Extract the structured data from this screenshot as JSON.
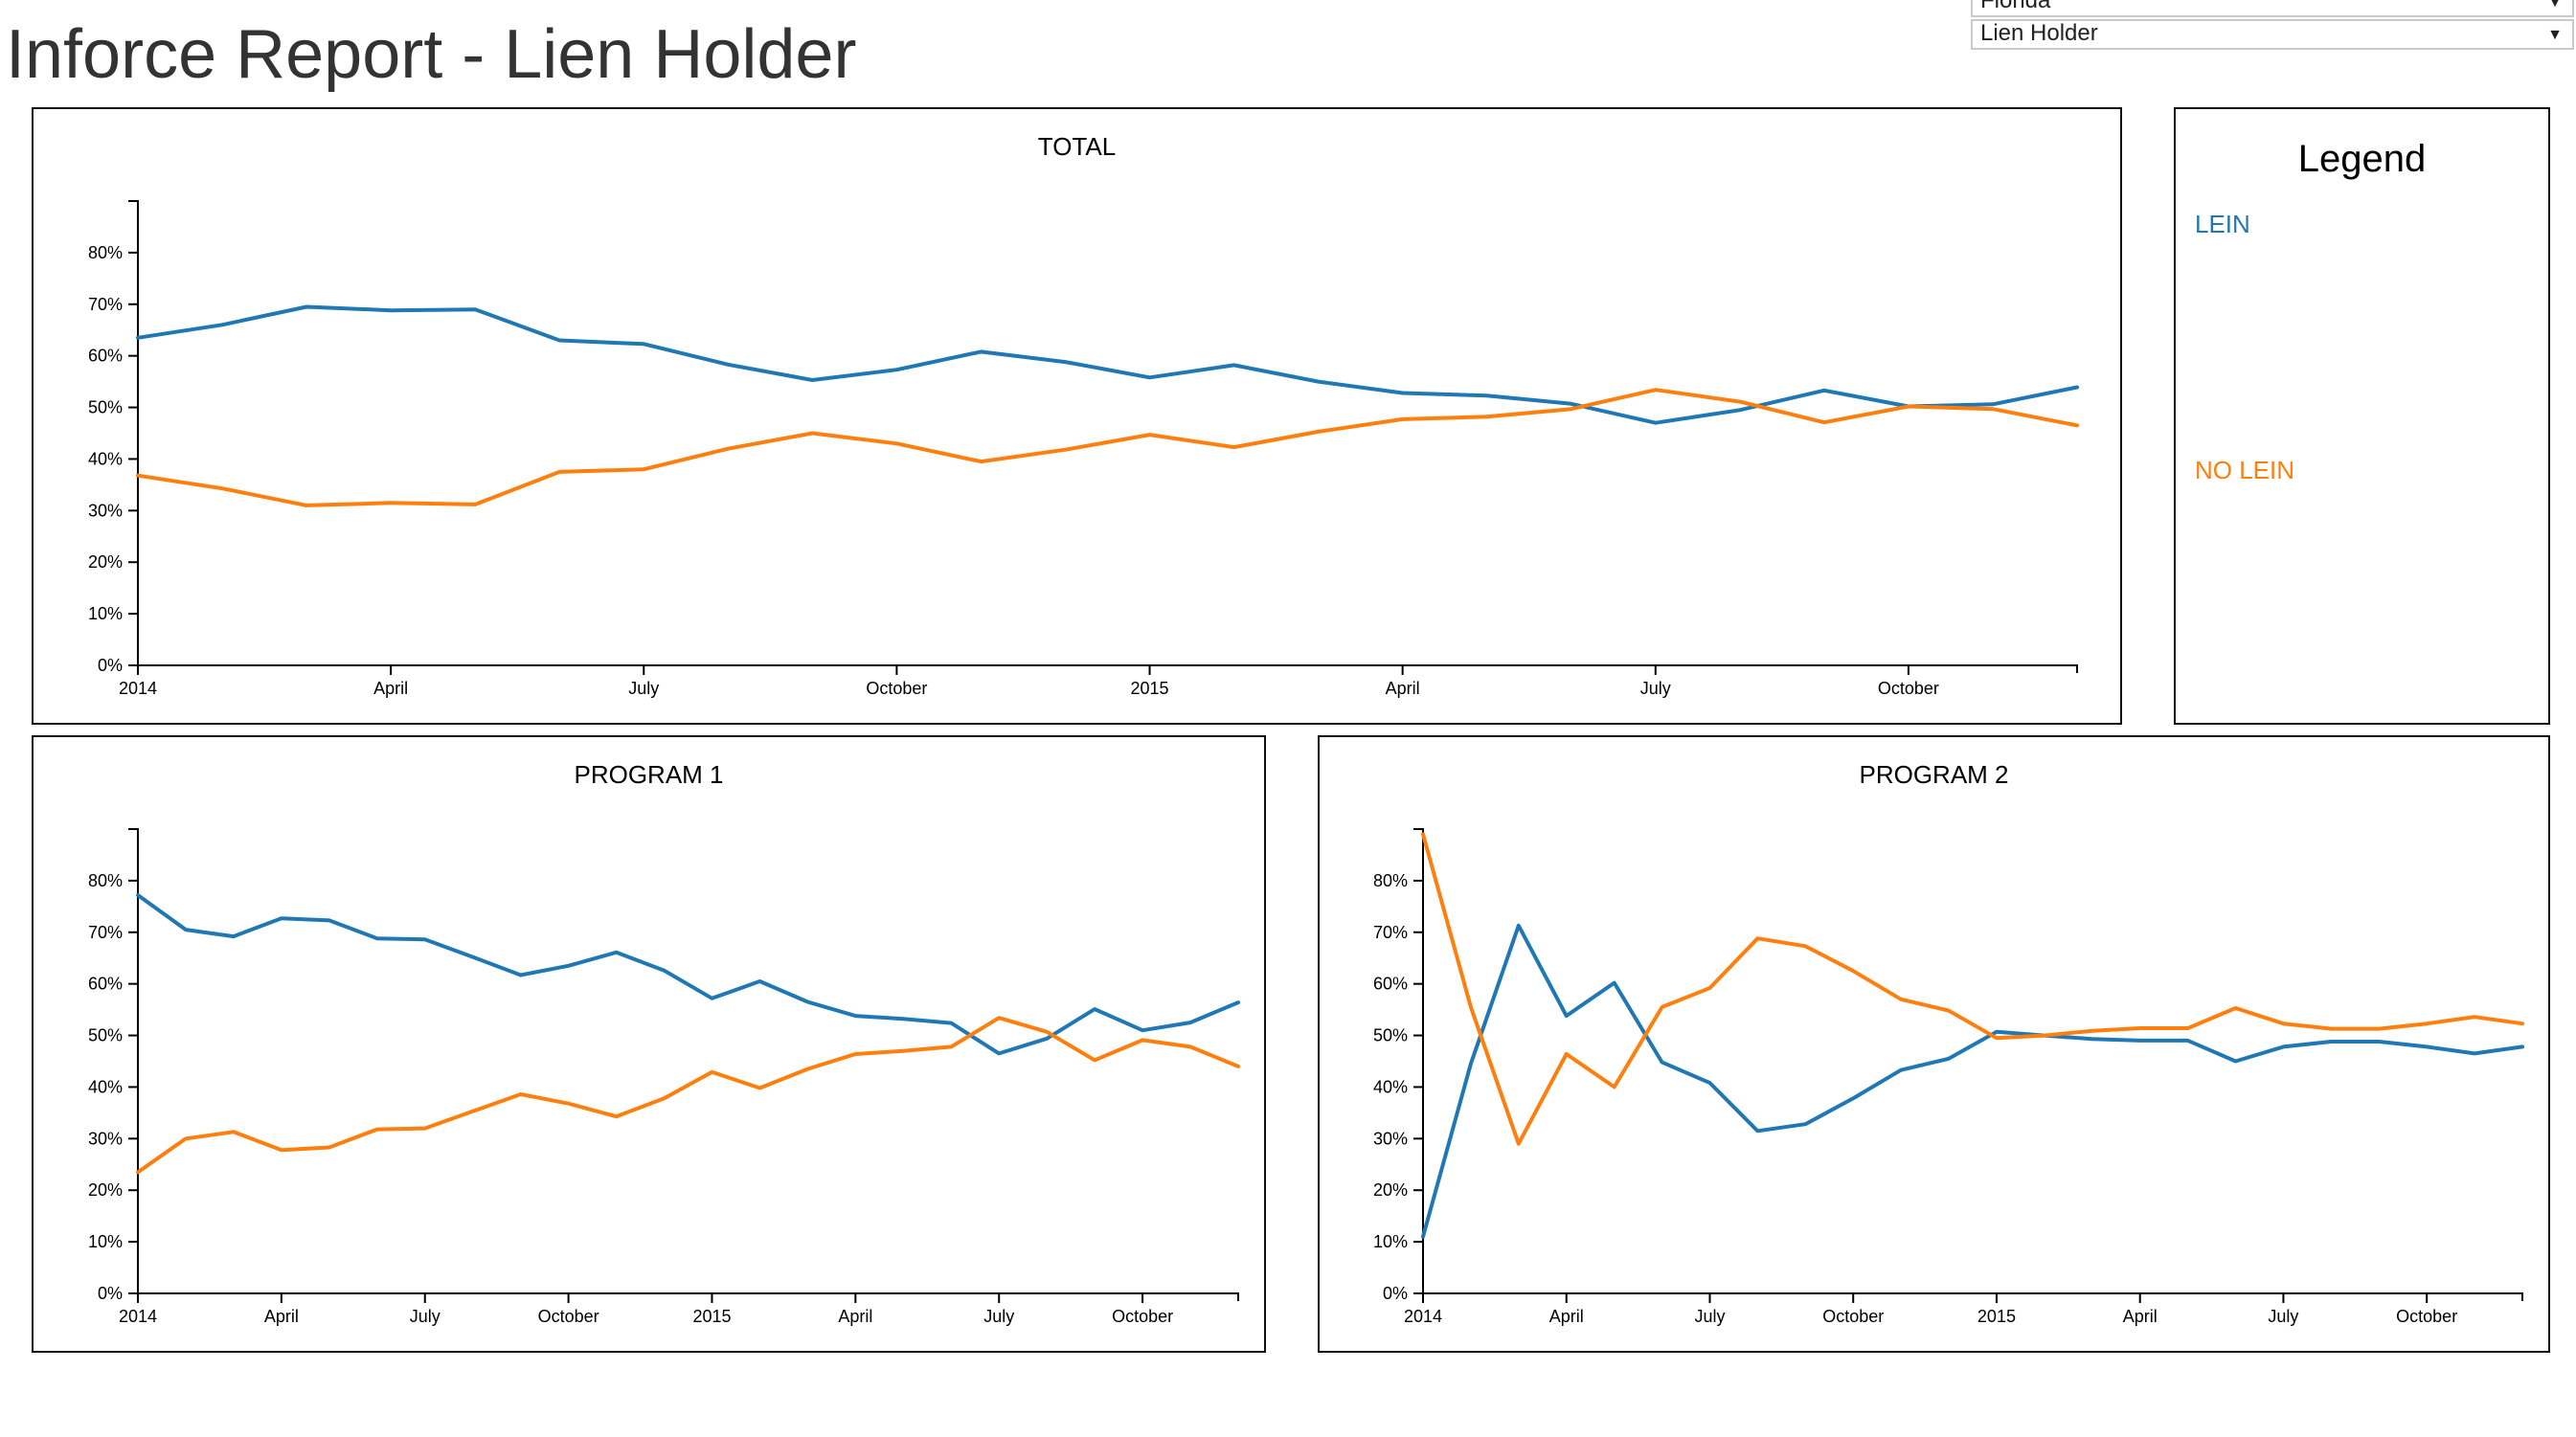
{
  "page": {
    "title": "Inforce Report - Lien Holder"
  },
  "filters": {
    "state": "Florida",
    "metric": "Lien Holder"
  },
  "colors": {
    "lein": "#1f77b4",
    "no_lein": "#ff7f0e"
  },
  "legend": {
    "title": "Legend",
    "items": [
      {
        "label": "LEIN",
        "color": "#1f77b4"
      },
      {
        "label": "NO LEIN",
        "color": "#ff7f0e"
      }
    ]
  },
  "chart_data": [
    {
      "id": "total",
      "type": "line",
      "title": "TOTAL",
      "xlabel": "",
      "ylabel": "",
      "x": [
        "2014-01",
        "2014-02",
        "2014-03",
        "2014-04",
        "2014-05",
        "2014-06",
        "2014-07",
        "2014-08",
        "2014-09",
        "2014-10",
        "2014-11",
        "2014-12",
        "2015-01",
        "2015-02",
        "2015-03",
        "2015-04",
        "2015-05",
        "2015-06",
        "2015-07",
        "2015-08",
        "2015-09",
        "2015-10",
        "2015-11",
        "2015-12"
      ],
      "xlim": [
        "2014-01",
        "2015-12"
      ],
      "x_tick_labels": [
        "2014",
        "April",
        "July",
        "October",
        "2015",
        "April",
        "July",
        "October"
      ],
      "ylim": [
        0,
        90
      ],
      "y_tick_labels": [
        "0%",
        "10%",
        "20%",
        "30%",
        "40%",
        "50%",
        "60%",
        "70%",
        "80%"
      ],
      "grid": false,
      "series": [
        {
          "name": "LEIN",
          "color": "#1f77b4",
          "values": [
            63.5,
            66,
            69.5,
            68.8,
            69,
            63,
            62.3,
            58.3,
            55.3,
            57.3,
            60.8,
            58.8,
            55.8,
            58.2,
            55,
            52.8,
            52.3,
            50.7,
            47,
            49.5,
            53.3,
            50.2,
            50.6,
            53.9
          ]
        },
        {
          "name": "NO LEIN",
          "color": "#ff7f0e",
          "values": [
            36.8,
            34.3,
            31,
            31.5,
            31.2,
            37.5,
            38,
            42,
            45,
            43,
            39.5,
            41.8,
            44.7,
            42.3,
            45.3,
            47.7,
            48.2,
            49.7,
            53.4,
            51.1,
            47.1,
            50.2,
            49.7,
            46.5
          ]
        }
      ]
    },
    {
      "id": "program1",
      "type": "line",
      "title": "PROGRAM 1",
      "xlabel": "",
      "ylabel": "",
      "x": [
        "2014-01",
        "2014-02",
        "2014-03",
        "2014-04",
        "2014-05",
        "2014-06",
        "2014-07",
        "2014-08",
        "2014-09",
        "2014-10",
        "2014-11",
        "2014-12",
        "2015-01",
        "2015-02",
        "2015-03",
        "2015-04",
        "2015-05",
        "2015-06",
        "2015-07",
        "2015-08",
        "2015-09",
        "2015-10",
        "2015-11",
        "2015-12"
      ],
      "xlim": [
        "2014-01",
        "2015-12"
      ],
      "x_tick_labels": [
        "2014",
        "April",
        "July",
        "October",
        "2015",
        "April",
        "July",
        "October"
      ],
      "ylim": [
        0,
        90
      ],
      "y_tick_labels": [
        "0%",
        "10%",
        "20%",
        "30%",
        "40%",
        "50%",
        "60%",
        "70%",
        "80%"
      ],
      "grid": false,
      "series": [
        {
          "name": "LEIN",
          "color": "#1f77b4",
          "values": [
            77.2,
            70.5,
            69.2,
            72.7,
            72.3,
            68.8,
            68.6,
            65.2,
            61.7,
            63.5,
            66.1,
            62.6,
            57.2,
            60.5,
            56.5,
            53.8,
            53.2,
            52.4,
            46.5,
            49.4,
            55.1,
            51,
            52.5,
            56.4
          ]
        },
        {
          "name": "NO LEIN",
          "color": "#ff7f0e",
          "values": [
            23.5,
            30,
            31.3,
            27.8,
            28.3,
            31.8,
            32,
            35.3,
            38.6,
            36.8,
            34.3,
            37.8,
            42.9,
            39.8,
            43.5,
            46.4,
            47,
            47.8,
            53.4,
            50.7,
            45.2,
            49.1,
            47.8,
            44
          ]
        }
      ]
    },
    {
      "id": "program2",
      "type": "line",
      "title": "PROGRAM 2",
      "xlabel": "",
      "ylabel": "",
      "x": [
        "2014-01",
        "2014-02",
        "2014-03",
        "2014-04",
        "2014-05",
        "2014-06",
        "2014-07",
        "2014-08",
        "2014-09",
        "2014-10",
        "2014-11",
        "2014-12",
        "2015-01",
        "2015-02",
        "2015-03",
        "2015-04",
        "2015-05",
        "2015-06",
        "2015-07",
        "2015-08",
        "2015-09",
        "2015-10",
        "2015-11",
        "2015-12"
      ],
      "xlim": [
        "2014-01",
        "2015-12"
      ],
      "x_tick_labels": [
        "2014",
        "April",
        "July",
        "October",
        "2015",
        "April",
        "July",
        "October"
      ],
      "ylim": [
        0,
        90
      ],
      "y_tick_labels": [
        "0%",
        "10%",
        "20%",
        "30%",
        "40%",
        "50%",
        "60%",
        "70%",
        "80%"
      ],
      "grid": false,
      "series": [
        {
          "name": "LEIN",
          "color": "#1f77b4",
          "values": [
            11,
            44.5,
            71.3,
            53.8,
            60.2,
            44.8,
            40.8,
            31.5,
            32.8,
            37.8,
            43.3,
            45.5,
            50.7,
            50,
            49.3,
            49,
            49,
            45,
            47.8,
            48.8,
            48.8,
            47.8,
            46.5,
            47.8
          ]
        },
        {
          "name": "NO LEIN",
          "color": "#ff7f0e",
          "values": [
            89,
            55.5,
            29,
            46.4,
            40,
            55.5,
            59.2,
            68.8,
            67.3,
            62.5,
            57,
            54.8,
            49.5,
            50,
            50.9,
            51.4,
            51.4,
            55.3,
            52.3,
            51.3,
            51.3,
            52.3,
            53.6,
            52.3
          ]
        }
      ]
    }
  ]
}
